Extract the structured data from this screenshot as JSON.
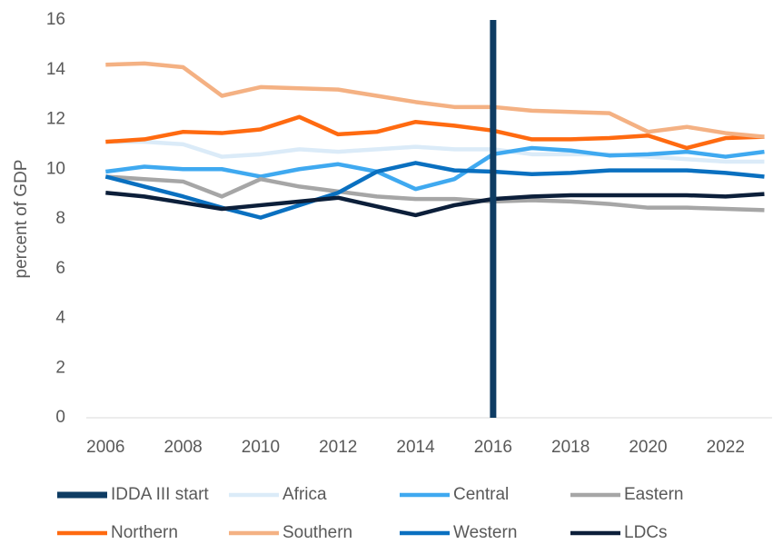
{
  "chart_data": {
    "type": "line",
    "y_label": "percent of GDP",
    "x": [
      2006,
      2007,
      2008,
      2009,
      2010,
      2011,
      2012,
      2013,
      2014,
      2015,
      2016,
      2017,
      2018,
      2019,
      2020,
      2021,
      2022,
      2023
    ],
    "xlim": [
      2005.5,
      2023.2
    ],
    "xticks": [
      2006,
      2008,
      2010,
      2012,
      2014,
      2016,
      2018,
      2020,
      2022
    ],
    "ylim": [
      0,
      16
    ],
    "yticks": [
      0,
      2,
      4,
      6,
      8,
      10,
      12,
      14,
      16
    ],
    "grid": false,
    "legend": "bottom",
    "markers": [
      {
        "name": "IDDA III start",
        "color": "#0e3c63",
        "x": 2016
      }
    ],
    "series": [
      {
        "name": "Africa",
        "color": "#dbebf8",
        "values": [
          11.1,
          11.1,
          11.0,
          10.5,
          10.6,
          10.8,
          10.7,
          10.8,
          10.9,
          10.8,
          10.8,
          10.6,
          10.6,
          10.6,
          10.5,
          10.4,
          10.3,
          10.3
        ]
      },
      {
        "name": "Central",
        "color": "#3fa9f0",
        "values": [
          9.9,
          10.1,
          10.0,
          10.0,
          9.7,
          10.0,
          10.2,
          9.9,
          9.2,
          9.6,
          10.6,
          10.85,
          10.75,
          10.55,
          10.6,
          10.7,
          10.5,
          10.7
        ]
      },
      {
        "name": "Eastern",
        "color": "#a6a6a6",
        "values": [
          9.7,
          9.6,
          9.5,
          8.9,
          9.6,
          9.3,
          9.1,
          8.9,
          8.8,
          8.8,
          8.7,
          8.75,
          8.7,
          8.6,
          8.45,
          8.45,
          8.4,
          8.35
        ]
      },
      {
        "name": "Northern",
        "color": "#ff6a10",
        "values": [
          11.1,
          11.2,
          11.5,
          11.45,
          11.6,
          12.1,
          11.4,
          11.5,
          11.9,
          11.75,
          11.55,
          11.2,
          11.2,
          11.25,
          11.35,
          10.85,
          11.25,
          11.3
        ]
      },
      {
        "name": "Southern",
        "color": "#f4b183",
        "values": [
          14.2,
          14.25,
          14.1,
          12.95,
          13.3,
          13.25,
          13.2,
          12.95,
          12.7,
          12.5,
          12.5,
          12.35,
          12.3,
          12.25,
          11.5,
          11.7,
          11.45,
          11.3
        ]
      },
      {
        "name": "Western",
        "color": "#0a70c0",
        "values": [
          9.7,
          9.3,
          8.9,
          8.45,
          8.05,
          8.55,
          9.05,
          9.9,
          10.25,
          9.95,
          9.9,
          9.8,
          9.85,
          9.95,
          9.95,
          9.95,
          9.85,
          9.7
        ]
      },
      {
        "name": "LDCs",
        "color": "#0c1f3a",
        "values": [
          9.05,
          8.9,
          8.65,
          8.4,
          8.55,
          8.7,
          8.85,
          8.5,
          8.15,
          8.55,
          8.8,
          8.9,
          8.95,
          8.95,
          8.95,
          8.95,
          8.9,
          9.0
        ]
      }
    ]
  }
}
